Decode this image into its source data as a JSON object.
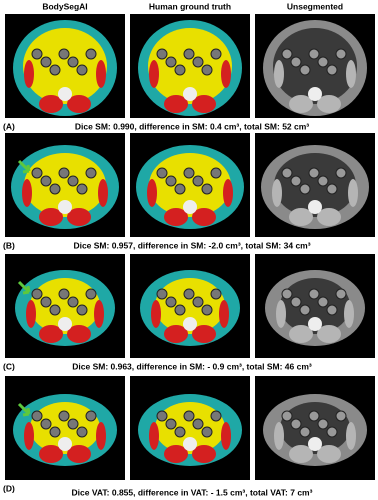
{
  "columns": [
    "BodySegAI",
    "Human ground truth",
    "Unsegmented"
  ],
  "panels": [
    {
      "label": "(A)",
      "caption": "Dice SM: 0.990, difference in SM: 0.4 cm³, total SM: 52 cm³"
    },
    {
      "label": "(B)",
      "caption": "Dice SM: 0.957, difference in SM: -2.0 cm³,  total SM: 34 cm³"
    },
    {
      "label": "(C)",
      "caption": "Dice SM: 0.963, difference in SM: - 0.9 cm³, total SM: 46 cm³"
    },
    {
      "label": "(D)",
      "caption": "Dice VAT: 0.855, difference in VAT: - 1.5 cm³, total VAT: 7 cm³"
    }
  ]
}
